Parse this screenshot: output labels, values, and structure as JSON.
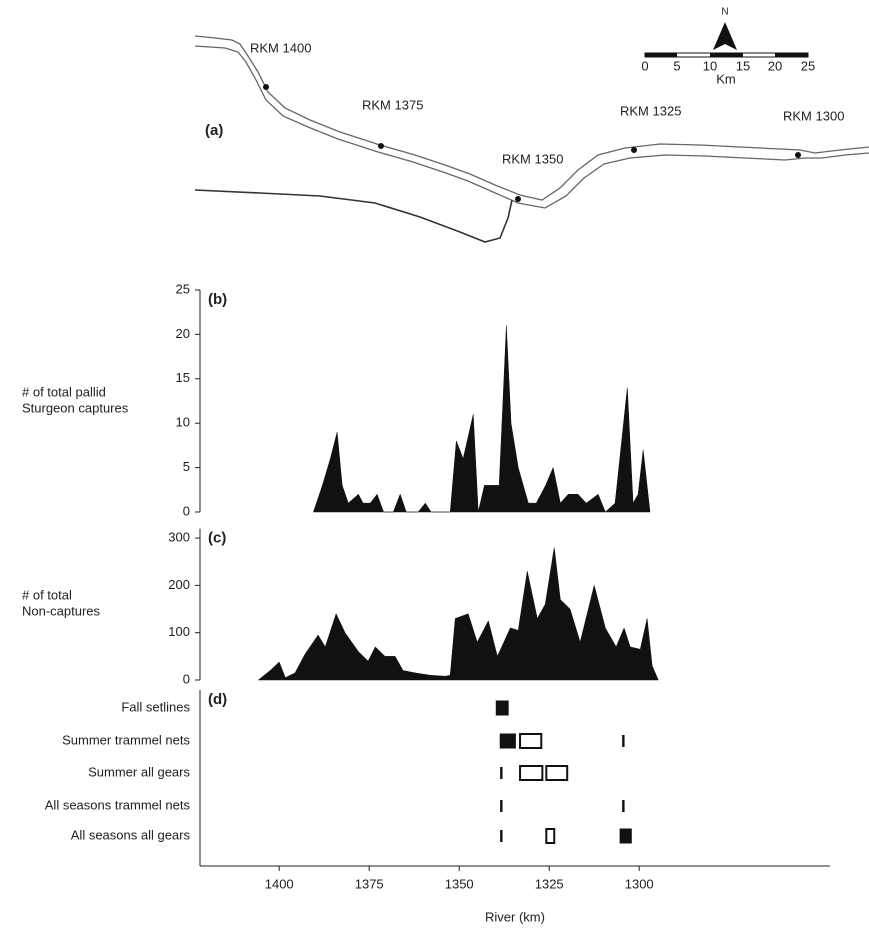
{
  "map": {
    "panel_label": "(a)",
    "rkm_labels": [
      "RKM 1400",
      "RKM 1375",
      "RKM 1350",
      "RKM 1325",
      "RKM 1300"
    ],
    "north": "N",
    "scale_labels": [
      "0",
      "5",
      "10",
      "15",
      "20",
      "25"
    ],
    "scale_unit": "Km"
  },
  "chart_data": [
    {
      "type": "area",
      "panel_label": "(b)",
      "ylabel": [
        "# of total pallid",
        "Sturgeon captures"
      ],
      "color": "#111111",
      "xlim": [
        1422,
        1247
      ],
      "ylim": [
        0,
        25
      ],
      "yticks": [
        0,
        5,
        10,
        15,
        20,
        25
      ],
      "x": [
        1390.5,
        1388,
        1385.8,
        1383.9,
        1382.5,
        1380.8,
        1378,
        1376.7,
        1374.7,
        1372.8,
        1371,
        1368.3,
        1366.4,
        1364.7,
        1361.4,
        1359.4,
        1357.8,
        1352.5,
        1350.8,
        1348.9,
        1346.1,
        1344.7,
        1343,
        1338.9,
        1336.9,
        1335.6,
        1333.6,
        1330.8,
        1328.6,
        1326,
        1323.9,
        1321.9,
        1319.7,
        1317,
        1314.7,
        1311.4,
        1309.4,
        1306.7,
        1303.3,
        1301.7,
        1300.3,
        1298.9,
        1297
      ],
      "values": [
        0,
        3,
        6,
        9,
        3,
        1,
        2,
        1,
        1,
        2,
        0,
        0,
        2,
        0,
        0,
        1,
        0,
        0,
        8,
        6,
        11,
        0,
        3,
        3,
        21,
        10,
        5,
        1,
        1,
        3,
        5,
        1,
        2,
        2,
        1,
        2,
        0,
        1,
        14,
        1,
        2,
        7,
        0
      ]
    },
    {
      "type": "area",
      "panel_label": "(c)",
      "ylabel": [
        "# of total",
        "Non-captures"
      ],
      "color": "#111111",
      "xlim": [
        1422,
        1247
      ],
      "ylim": [
        0,
        320
      ],
      "yticks": [
        0,
        100,
        200,
        300
      ],
      "x": [
        1405.8,
        1402.5,
        1400,
        1398.3,
        1395.6,
        1392.8,
        1389.2,
        1387.2,
        1384.2,
        1381.7,
        1378,
        1375.3,
        1373.3,
        1370.6,
        1367.8,
        1365.6,
        1362.2,
        1358,
        1353.9,
        1352.5,
        1351.1,
        1347.5,
        1345,
        1341.9,
        1339.4,
        1335.8,
        1333.6,
        1331.1,
        1328.3,
        1326.1,
        1323.6,
        1321.9,
        1319.2,
        1316.4,
        1312.5,
        1309.4,
        1306.4,
        1304.2,
        1302.5,
        1299.7,
        1297.8,
        1296.4,
        1294.7
      ],
      "values": [
        0,
        20,
        38,
        5,
        15,
        55,
        95,
        70,
        140,
        100,
        60,
        40,
        70,
        50,
        50,
        20,
        15,
        10,
        8,
        10,
        130,
        140,
        80,
        125,
        50,
        110,
        105,
        230,
        130,
        160,
        280,
        170,
        150,
        80,
        200,
        110,
        70,
        110,
        70,
        65,
        130,
        30,
        0
      ]
    },
    {
      "type": "segments",
      "panel_label": "(d)",
      "xlabel": "River (km)",
      "xlim": [
        1422,
        1247
      ],
      "xticks": [
        1400,
        1375,
        1350,
        1325,
        1300
      ],
      "rows": [
        {
          "label": "Fall setlines",
          "marks": [
            {
              "style": "filled",
              "from": 1339.7,
              "to": 1336.4
            }
          ]
        },
        {
          "label": "Summer trammel nets",
          "marks": [
            {
              "style": "filled",
              "from": 1338.6,
              "to": 1334.4
            },
            {
              "style": "open",
              "from": 1333.1,
              "to": 1327.2
            },
            {
              "style": "line",
              "at": 1304.4
            }
          ]
        },
        {
          "label": "Summer all gears",
          "marks": [
            {
              "style": "line",
              "at": 1338.3
            },
            {
              "style": "open",
              "from": 1333.1,
              "to": 1326.9
            },
            {
              "style": "open",
              "from": 1325.8,
              "to": 1320
            }
          ]
        },
        {
          "label": "All seasons trammel nets",
          "marks": [
            {
              "style": "line",
              "at": 1338.3
            },
            {
              "style": "line",
              "at": 1304.4
            }
          ]
        },
        {
          "label": "All seasons all gears",
          "marks": [
            {
              "style": "line",
              "at": 1338.3
            },
            {
              "style": "open",
              "from": 1325.8,
              "to": 1323.6
            },
            {
              "style": "filled",
              "from": 1305.3,
              "to": 1302.2
            }
          ]
        }
      ]
    }
  ]
}
